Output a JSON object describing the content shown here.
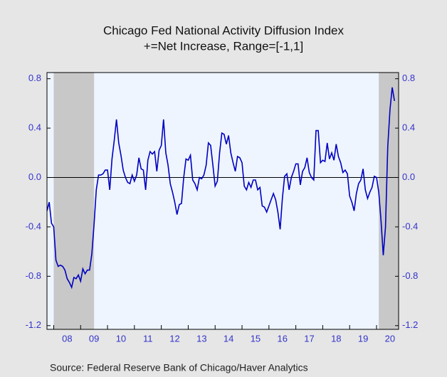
{
  "chart_data": {
    "type": "line",
    "title": "Chicago Fed National Activity Diffusion Index",
    "subtitle": "+=Net Increase, Range=[-1,1]",
    "source": "Source:  Federal Reserve Bank of Chicago/Haver Analytics",
    "color": "#0000c0",
    "shade_color": "#c8c8c8",
    "shaded_regions": [
      [
        2008.0,
        2009.5
      ],
      [
        2020.083,
        2020.82
      ]
    ],
    "xlim": [
      2007.75,
      2020.82
    ],
    "ylim": [
      -1.23,
      0.85
    ],
    "yticks": [
      0.8,
      0.4,
      {
        "value": 0,
        "label": "0.0"
      },
      -0.4,
      -0.8,
      -1.2
    ],
    "y2ticks": [
      0.8,
      0.4,
      {
        "value": 0,
        "label": "0.0"
      },
      -0.4,
      -0.8,
      -1.2
    ],
    "xticks": [
      {
        "value": 2008.5,
        "label": "08"
      },
      {
        "value": 2009.5,
        "label": "09"
      },
      {
        "value": 2010.5,
        "label": "10"
      },
      {
        "value": 2011.5,
        "label": "11"
      },
      {
        "value": 2012.5,
        "label": "12"
      },
      {
        "value": 2013.5,
        "label": "13"
      },
      {
        "value": 2014.5,
        "label": "14"
      },
      {
        "value": 2015.5,
        "label": "15"
      },
      {
        "value": 2016.5,
        "label": "16"
      },
      {
        "value": 2017.5,
        "label": "17"
      },
      {
        "value": 2018.5,
        "label": "18"
      },
      {
        "value": 2019.5,
        "label": "19"
      },
      {
        "value": 2020.5,
        "label": "20"
      }
    ],
    "x": [
      2007.75,
      2007.833,
      2007.917,
      2008.0,
      2008.083,
      2008.167,
      2008.25,
      2008.333,
      2008.417,
      2008.5,
      2008.583,
      2008.667,
      2008.75,
      2008.833,
      2008.917,
      2009.0,
      2009.083,
      2009.167,
      2009.25,
      2009.333,
      2009.417,
      2009.5,
      2009.583,
      2009.667,
      2009.75,
      2009.833,
      2009.917,
      2010.0,
      2010.083,
      2010.167,
      2010.25,
      2010.333,
      2010.417,
      2010.5,
      2010.583,
      2010.667,
      2010.75,
      2010.833,
      2010.917,
      2011.0,
      2011.083,
      2011.167,
      2011.25,
      2011.333,
      2011.417,
      2011.5,
      2011.583,
      2011.667,
      2011.75,
      2011.833,
      2011.917,
      2012.0,
      2012.083,
      2012.167,
      2012.25,
      2012.333,
      2012.417,
      2012.5,
      2012.583,
      2012.667,
      2012.75,
      2012.833,
      2012.917,
      2013.0,
      2013.083,
      2013.167,
      2013.25,
      2013.333,
      2013.417,
      2013.5,
      2013.583,
      2013.667,
      2013.75,
      2013.833,
      2013.917,
      2014.0,
      2014.083,
      2014.167,
      2014.25,
      2014.333,
      2014.417,
      2014.5,
      2014.583,
      2014.667,
      2014.75,
      2014.833,
      2014.917,
      2015.0,
      2015.083,
      2015.167,
      2015.25,
      2015.333,
      2015.417,
      2015.5,
      2015.583,
      2015.667,
      2015.75,
      2015.833,
      2015.917,
      2016.0,
      2016.083,
      2016.167,
      2016.25,
      2016.333,
      2016.417,
      2016.5,
      2016.583,
      2016.667,
      2016.75,
      2016.833,
      2016.917,
      2017.0,
      2017.083,
      2017.167,
      2017.25,
      2017.333,
      2017.417,
      2017.5,
      2017.583,
      2017.667,
      2017.75,
      2017.833,
      2017.917,
      2018.0,
      2018.083,
      2018.167,
      2018.25,
      2018.333,
      2018.417,
      2018.5,
      2018.583,
      2018.667,
      2018.75,
      2018.833,
      2018.917,
      2019.0,
      2019.083,
      2019.167,
      2019.25,
      2019.333,
      2019.417,
      2019.5,
      2019.583,
      2019.667,
      2019.75,
      2019.833,
      2019.917,
      2020.0,
      2020.083,
      2020.167,
      2020.25,
      2020.333,
      2020.417,
      2020.5,
      2020.583,
      2020.667
    ],
    "values": [
      -0.27,
      -0.2,
      -0.37,
      -0.4,
      -0.67,
      -0.72,
      -0.71,
      -0.72,
      -0.75,
      -0.82,
      -0.85,
      -0.89,
      -0.81,
      -0.82,
      -0.79,
      -0.84,
      -0.74,
      -0.78,
      -0.75,
      -0.75,
      -0.62,
      -0.38,
      -0.1,
      0.02,
      0.02,
      0.03,
      0.06,
      0.06,
      -0.1,
      0.15,
      0.3,
      0.47,
      0.28,
      0.18,
      0.06,
      0.0,
      -0.04,
      -0.05,
      0.02,
      -0.03,
      0.02,
      0.16,
      0.07,
      0.06,
      -0.1,
      0.14,
      0.21,
      0.19,
      0.21,
      0.05,
      0.22,
      0.26,
      0.47,
      0.2,
      0.1,
      -0.05,
      -0.12,
      -0.2,
      -0.3,
      -0.22,
      -0.21,
      0.0,
      0.15,
      0.14,
      0.18,
      -0.02,
      -0.05,
      -0.1,
      0.0,
      -0.01,
      0.02,
      0.1,
      0.28,
      0.26,
      0.1,
      -0.07,
      -0.03,
      0.2,
      0.36,
      0.35,
      0.27,
      0.34,
      0.2,
      0.12,
      0.05,
      0.17,
      0.16,
      0.12,
      -0.07,
      -0.1,
      -0.04,
      -0.08,
      -0.02,
      -0.02,
      -0.1,
      -0.08,
      -0.23,
      -0.24,
      -0.28,
      -0.23,
      -0.18,
      -0.13,
      -0.18,
      -0.28,
      -0.42,
      -0.17,
      0.01,
      0.03,
      -0.1,
      0.0,
      0.05,
      0.11,
      0.11,
      -0.06,
      0.05,
      0.08,
      0.16,
      0.04,
      0.0,
      -0.02,
      0.38,
      0.38,
      0.12,
      0.14,
      0.13,
      0.28,
      0.15,
      0.2,
      0.14,
      0.27,
      0.17,
      0.12,
      0.04,
      0.06,
      0.03,
      -0.15,
      -0.2,
      -0.27,
      -0.13,
      -0.05,
      -0.02,
      0.07,
      -0.1,
      -0.17,
      -0.12,
      -0.08,
      0.01,
      0.0,
      -0.12,
      -0.35,
      -0.63,
      -0.4,
      0.25,
      0.55,
      0.73,
      0.62
    ]
  }
}
